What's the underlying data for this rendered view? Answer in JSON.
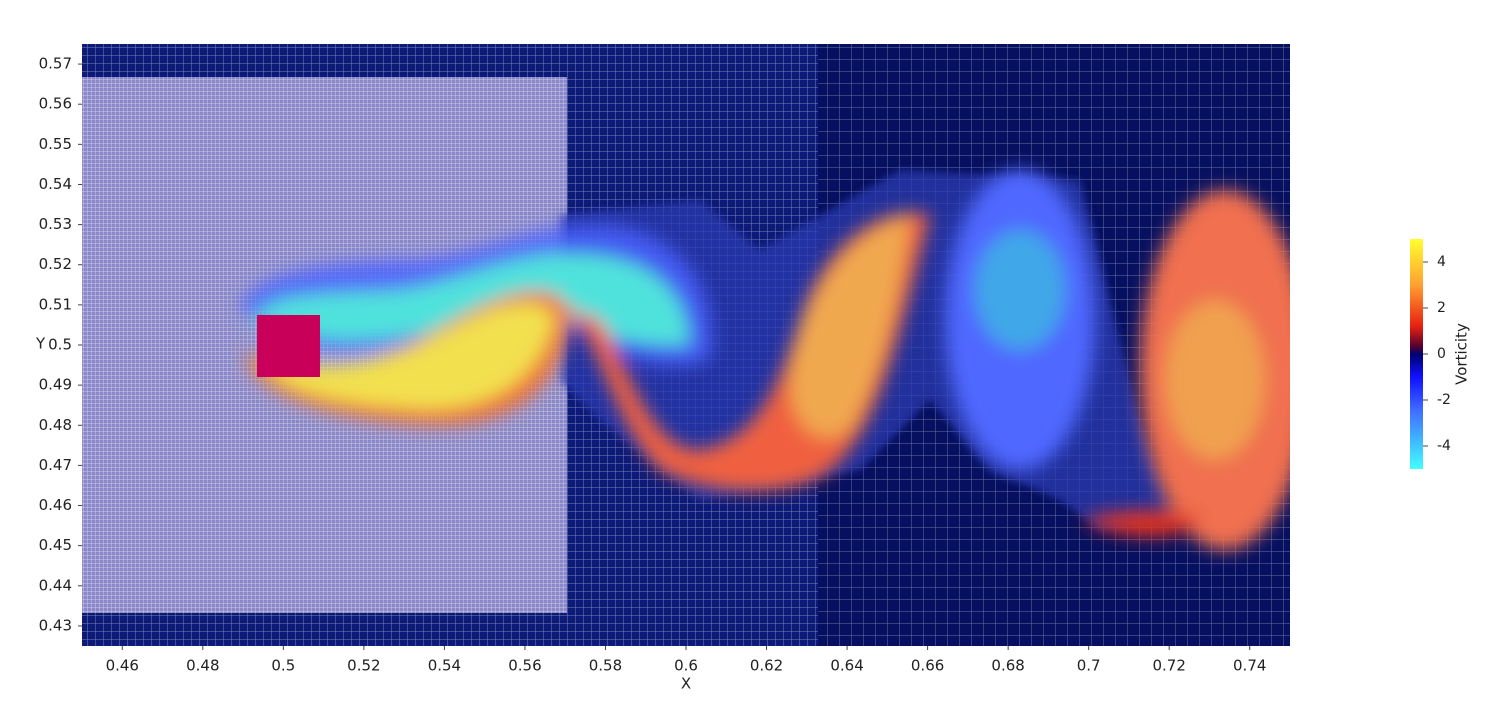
{
  "chart_data": {
    "type": "field",
    "x_label": "X",
    "y_label": "Y",
    "xlim": [
      0.45,
      0.75
    ],
    "ylim": [
      0.425,
      0.575
    ],
    "xticks": [
      0.46,
      0.48,
      0.5,
      0.52,
      0.54,
      0.56,
      0.58,
      0.6,
      0.62,
      0.64,
      0.66,
      0.68,
      0.7,
      0.72,
      0.74
    ],
    "yticks": [
      0.43,
      0.44,
      0.45,
      0.46,
      0.47,
      0.48,
      0.49,
      0.5,
      0.51,
      0.52,
      0.53,
      0.54,
      0.55,
      0.56,
      0.57
    ],
    "colorbar": {
      "title": "Vorticity",
      "lim": [
        -5,
        5
      ],
      "ticks": [
        4,
        2,
        0,
        -2,
        -4
      ]
    }
  }
}
